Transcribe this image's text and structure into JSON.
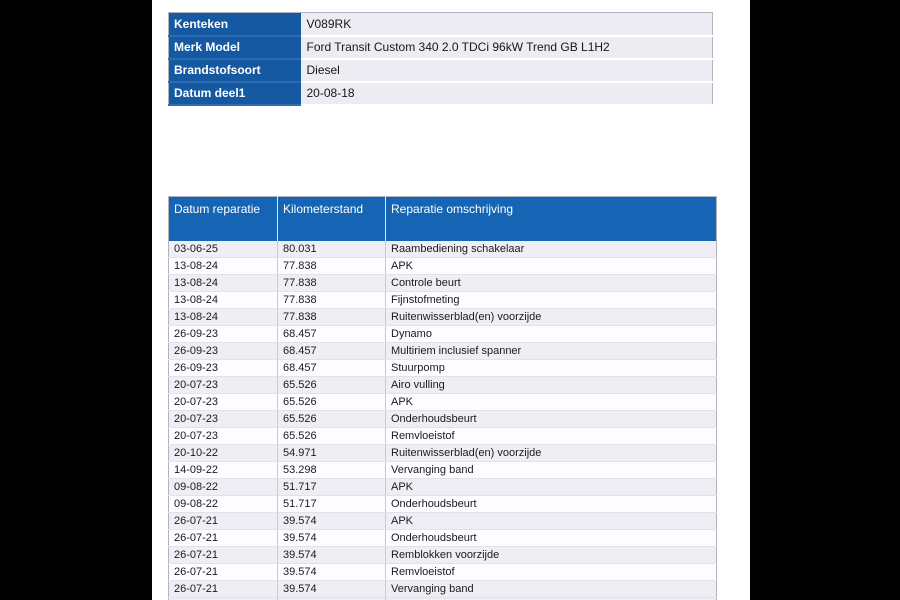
{
  "colors": {
    "page_background": "#000000",
    "canvas_background": "#ffffff",
    "info_label_bg": "#1459a1",
    "repair_header_bg": "#1565b4",
    "row_stripe_odd": "#eeeef4",
    "row_stripe_even": "#fdfdff"
  },
  "vehicle_info": {
    "rows": [
      {
        "label": "Kenteken",
        "value": "V089RK"
      },
      {
        "label": "Merk Model",
        "value": "Ford Transit Custom 340 2.0 TDCi 96kW Trend GB L1H2"
      },
      {
        "label": "Brandstofsoort",
        "value": "Diesel"
      },
      {
        "label": "Datum deel1",
        "value": "20-08-18"
      }
    ]
  },
  "repair_history": {
    "headers": [
      "Datum reparatie",
      "Kilometerstand",
      "Reparatie omschrijving"
    ],
    "rows": [
      [
        "03-06-25",
        "80.031",
        "Raambediening schakelaar"
      ],
      [
        "13-08-24",
        "77.838",
        "APK"
      ],
      [
        "13-08-24",
        "77.838",
        "Controle beurt"
      ],
      [
        "13-08-24",
        "77.838",
        "Fijnstofmeting"
      ],
      [
        "13-08-24",
        "77.838",
        "Ruitenwisserblad(en) voorzijde"
      ],
      [
        "26-09-23",
        "68.457",
        "Dynamo"
      ],
      [
        "26-09-23",
        "68.457",
        "Multiriem inclusief spanner"
      ],
      [
        "26-09-23",
        "68.457",
        "Stuurpomp"
      ],
      [
        "20-07-23",
        "65.526",
        "Airo vulling"
      ],
      [
        "20-07-23",
        "65.526",
        "APK"
      ],
      [
        "20-07-23",
        "65.526",
        "Onderhoudsbeurt"
      ],
      [
        "20-07-23",
        "65.526",
        "Remvloeistof"
      ],
      [
        "20-10-22",
        "54.971",
        "Ruitenwisserblad(en) voorzijde"
      ],
      [
        "14-09-22",
        "53.298",
        "Vervanging band"
      ],
      [
        "09-08-22",
        "51.717",
        "APK"
      ],
      [
        "09-08-22",
        "51.717",
        "Onderhoudsbeurt"
      ],
      [
        "26-07-21",
        "39.574",
        "APK"
      ],
      [
        "26-07-21",
        "39.574",
        "Onderhoudsbeurt"
      ],
      [
        "26-07-21",
        "39.574",
        "Remblokken voorzijde"
      ],
      [
        "26-07-21",
        "39.574",
        "Remvloeistof"
      ],
      [
        "26-07-21",
        "39.574",
        "Vervanging band"
      ]
    ]
  }
}
